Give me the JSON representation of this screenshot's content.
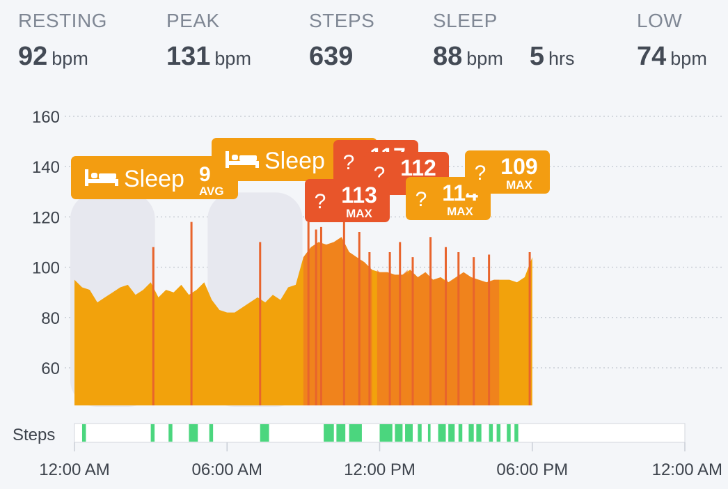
{
  "stats": {
    "resting": {
      "label": "RESTING",
      "value": "92",
      "unit": "bpm"
    },
    "peak": {
      "label": "PEAK",
      "value": "131",
      "unit": "bpm"
    },
    "steps": {
      "label": "STEPS",
      "value": "639"
    },
    "sleep": {
      "label": "SLEEP",
      "value": "88",
      "unit": "bpm",
      "duration": "5",
      "duration_unit": "hrs"
    },
    "low": {
      "label": "LOW",
      "value": "74",
      "unit": "bpm"
    }
  },
  "chart_data": {
    "type": "area",
    "title": "",
    "ylabel": "",
    "xlabel": "",
    "ylim": [
      46,
      162
    ],
    "y_ticks": [
      60,
      80,
      100,
      120,
      140,
      160
    ],
    "x_ticks": [
      "12:00 AM",
      "06:00 AM",
      "12:00 PM",
      "06:00 PM",
      "12:00 AM"
    ],
    "x_range_hours": [
      0,
      24
    ],
    "grid": true,
    "colors": {
      "base": "#f2a20c",
      "sleep_shade": "#e7e8ef",
      "activity": "#ef6a2a",
      "spike": "#e8642c",
      "steps": "#4bd67e"
    },
    "sleep_periods": [
      {
        "start": 0.0,
        "end": 3.0,
        "label": "Sleep",
        "value": "9",
        "value_label": "AVG"
      },
      {
        "start": 5.4,
        "end": 8.8,
        "label": "Sleep",
        "value": "",
        "value_label": ""
      }
    ],
    "heart_rate_series": {
      "name": "",
      "x_hours": [
        0.0,
        0.3,
        0.6,
        0.9,
        1.2,
        1.5,
        1.8,
        2.1,
        2.4,
        2.7,
        3.0,
        3.3,
        3.6,
        3.9,
        4.2,
        4.5,
        4.8,
        5.1,
        5.4,
        5.7,
        6.0,
        6.3,
        6.6,
        6.9,
        7.2,
        7.5,
        7.8,
        8.1,
        8.4,
        8.7,
        9.0,
        9.3,
        9.6,
        9.9,
        10.2,
        10.5,
        10.8,
        11.1,
        11.4,
        11.7,
        12.0,
        12.3,
        12.6,
        12.9,
        13.2,
        13.5,
        13.8,
        14.1,
        14.4,
        14.7,
        15.0,
        15.3,
        15.6,
        15.9,
        16.2,
        16.5,
        16.8,
        17.1,
        17.4,
        17.7,
        18.0
      ],
      "values": [
        95,
        92,
        91,
        86,
        88,
        90,
        92,
        93,
        89,
        91,
        94,
        88,
        91,
        90,
        93,
        89,
        91,
        94,
        87,
        83,
        82,
        82,
        84,
        86,
        88,
        86,
        89,
        87,
        92,
        93,
        104,
        108,
        110,
        109,
        110,
        112,
        106,
        104,
        102,
        99,
        98,
        98,
        97,
        97,
        99,
        96,
        98,
        95,
        96,
        94,
        96,
        98,
        96,
        95,
        94,
        95,
        95,
        95,
        94,
        96,
        104
      ]
    },
    "heart_rate_spikes": [
      {
        "x": 3.1,
        "y": 108
      },
      {
        "x": 4.6,
        "y": 118
      },
      {
        "x": 7.3,
        "y": 110
      },
      {
        "x": 9.2,
        "y": 118
      },
      {
        "x": 9.5,
        "y": 115
      },
      {
        "x": 9.7,
        "y": 116
      },
      {
        "x": 10.6,
        "y": 118
      },
      {
        "x": 11.2,
        "y": 114
      },
      {
        "x": 11.6,
        "y": 106
      },
      {
        "x": 12.4,
        "y": 106
      },
      {
        "x": 12.8,
        "y": 110
      },
      {
        "x": 13.3,
        "y": 104
      },
      {
        "x": 14.0,
        "y": 112
      },
      {
        "x": 14.6,
        "y": 108
      },
      {
        "x": 15.1,
        "y": 106
      },
      {
        "x": 15.7,
        "y": 104
      },
      {
        "x": 16.3,
        "y": 105
      },
      {
        "x": 17.9,
        "y": 106
      }
    ],
    "activity_periods": [
      {
        "start": 9.0,
        "end": 11.7,
        "value": "113",
        "value_label": "MAX"
      },
      {
        "start": 11.9,
        "end": 13.1,
        "value": "112",
        "value_label": "MAX"
      },
      {
        "start": 13.1,
        "end": 14.6,
        "value": "114",
        "value_label": "MAX"
      },
      {
        "start": 14.6,
        "end": 16.7,
        "value": "109",
        "value_label": "MAX"
      }
    ],
    "activity_badges": [
      {
        "icon": "question-mark-icon",
        "glyph": "?",
        "value": "117",
        "value_label": "MAX"
      },
      {
        "icon": "question-mark-icon",
        "glyph": "?",
        "value": "112",
        "value_label": "MAX"
      },
      {
        "icon": "question-mark-icon",
        "glyph": "?",
        "value": "113",
        "value_label": "MAX"
      },
      {
        "icon": "question-mark-icon",
        "glyph": "?",
        "value": "114",
        "value_label": "MAX"
      },
      {
        "icon": "question-mark-icon",
        "glyph": "?",
        "value": "109",
        "value_label": "MAX"
      }
    ],
    "sleep_icon": "bed-icon",
    "steps_label": "Steps",
    "step_segments": [
      {
        "start": 0.3,
        "end": 0.45
      },
      {
        "start": 3.0,
        "end": 3.15
      },
      {
        "start": 3.7,
        "end": 3.85
      },
      {
        "start": 4.5,
        "end": 4.85
      },
      {
        "start": 5.3,
        "end": 5.45
      },
      {
        "start": 7.3,
        "end": 7.65
      },
      {
        "start": 9.8,
        "end": 10.2
      },
      {
        "start": 10.3,
        "end": 10.65
      },
      {
        "start": 10.8,
        "end": 11.3
      },
      {
        "start": 12.0,
        "end": 12.5
      },
      {
        "start": 12.6,
        "end": 12.9
      },
      {
        "start": 13.0,
        "end": 13.3
      },
      {
        "start": 13.5,
        "end": 13.65
      },
      {
        "start": 13.9,
        "end": 14.0
      },
      {
        "start": 14.3,
        "end": 14.6
      },
      {
        "start": 14.7,
        "end": 14.95
      },
      {
        "start": 15.1,
        "end": 15.25
      },
      {
        "start": 15.5,
        "end": 15.7
      },
      {
        "start": 15.8,
        "end": 16.0
      },
      {
        "start": 16.3,
        "end": 16.45
      },
      {
        "start": 16.6,
        "end": 16.75
      },
      {
        "start": 17.0,
        "end": 17.15
      },
      {
        "start": 17.3,
        "end": 17.45
      }
    ]
  }
}
